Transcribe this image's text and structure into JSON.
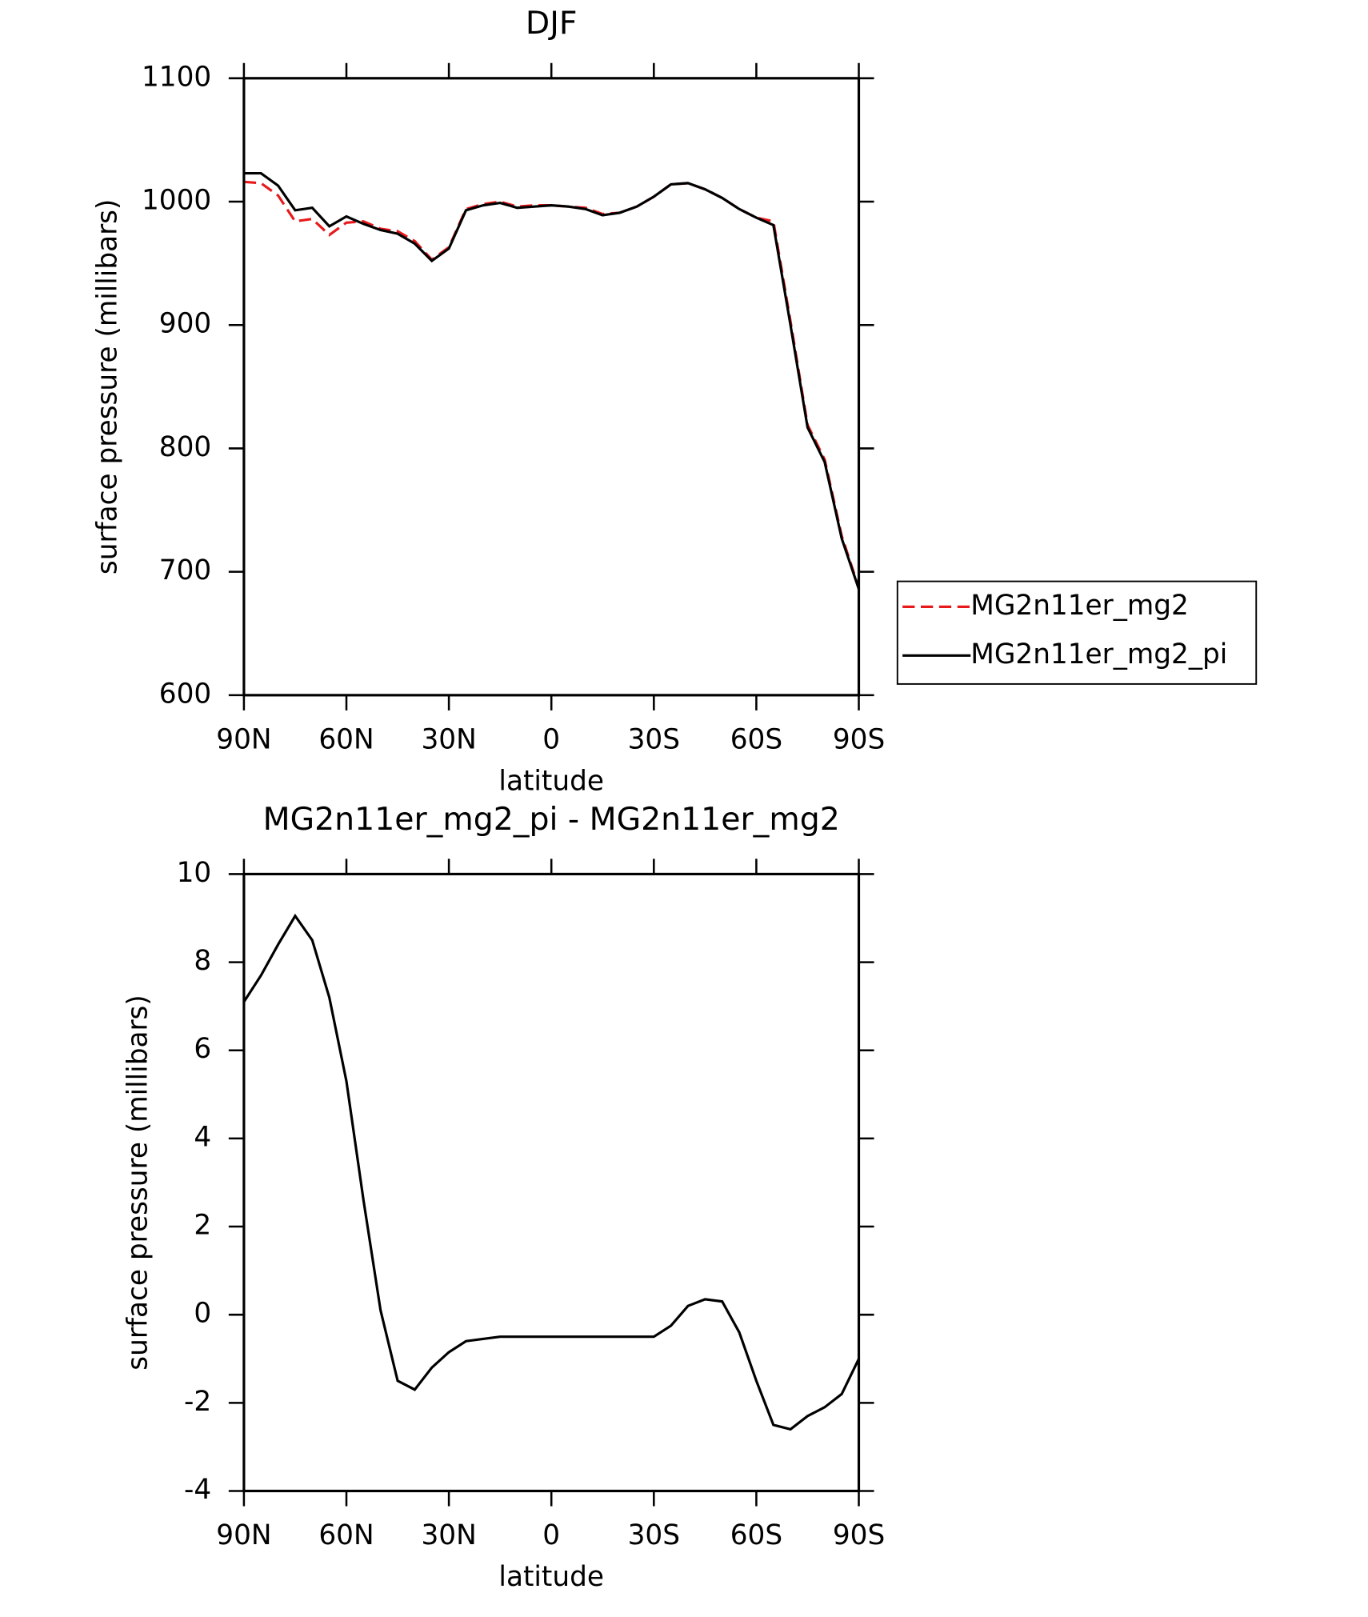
{
  "chart_data": [
    {
      "type": "line",
      "title": "DJF",
      "x_label": "latitude",
      "y_label": "surface pressure (millibars)",
      "x": [
        90,
        85,
        80,
        75,
        70,
        65,
        60,
        55,
        50,
        45,
        40,
        35,
        30,
        25,
        20,
        15,
        10,
        5,
        0,
        -5,
        -10,
        -15,
        -20,
        -25,
        -30,
        -35,
        -40,
        -45,
        -50,
        -55,
        -60,
        -65,
        -70,
        -75,
        -80,
        -85,
        -90
      ],
      "xlim": [
        90,
        -90
      ],
      "xticks": [
        {
          "value": 90,
          "label": "90N"
        },
        {
          "value": 60,
          "label": "60N"
        },
        {
          "value": 30,
          "label": "30N"
        },
        0,
        {
          "value": -30,
          "label": "30S"
        },
        {
          "value": -60,
          "label": "60S"
        },
        {
          "value": -90,
          "label": "90S"
        }
      ],
      "ylim": [
        600,
        1100
      ],
      "yticks": [
        600,
        700,
        800,
        900,
        1000,
        1100
      ],
      "legend": "right",
      "series": [
        {
          "name": "MG2n11er_mg2",
          "color": "#e8191b",
          "dash": true,
          "values": [
            1016,
            1015,
            1005,
            984,
            986,
            973,
            983,
            984,
            978,
            976,
            968,
            953,
            963,
            994,
            998,
            1000,
            996,
            997,
            997,
            996,
            995,
            990,
            991,
            996,
            1004,
            1014,
            1015,
            1010,
            1003,
            994,
            987,
            984,
            903,
            819,
            791,
            729,
            687
          ]
        },
        {
          "name": "MG2n11er_mg2_pi",
          "color": "#000000",
          "dash": false,
          "values": [
            1023,
            1023,
            1013,
            993,
            995,
            980,
            988,
            982,
            977,
            974,
            966,
            952,
            962,
            993,
            997,
            999,
            995,
            996,
            997,
            996,
            994,
            989,
            991,
            996,
            1004,
            1014,
            1015,
            1010,
            1003,
            994,
            987,
            981,
            900,
            817,
            789,
            727,
            686
          ]
        }
      ]
    },
    {
      "type": "line",
      "title": "MG2n11er_mg2_pi - MG2n11er_mg2",
      "x_label": "latitude",
      "y_label": "surface pressure (millibars)",
      "x": [
        90,
        85,
        80,
        75,
        70,
        65,
        60,
        55,
        50,
        45,
        40,
        35,
        30,
        25,
        20,
        15,
        10,
        5,
        0,
        -5,
        -10,
        -15,
        -20,
        -25,
        -30,
        -35,
        -40,
        -45,
        -50,
        -55,
        -60,
        -65,
        -70,
        -75,
        -80,
        -85,
        -90
      ],
      "xlim": [
        90,
        -90
      ],
      "xticks": [
        {
          "value": 90,
          "label": "90N"
        },
        {
          "value": 60,
          "label": "60N"
        },
        {
          "value": 30,
          "label": "30N"
        },
        0,
        {
          "value": -30,
          "label": "30S"
        },
        {
          "value": -60,
          "label": "60S"
        },
        {
          "value": -90,
          "label": "90S"
        }
      ],
      "ylim": [
        -4,
        10
      ],
      "yticks": [
        -4,
        -2,
        0,
        2,
        4,
        6,
        8,
        10
      ],
      "series": [
        {
          "color": "#000000",
          "dash": false,
          "values": [
            7.1,
            7.7,
            8.4,
            9.05,
            8.5,
            7.2,
            5.3,
            2.6,
            0.1,
            -1.5,
            -1.7,
            -1.2,
            -0.85,
            -0.6,
            -0.55,
            -0.5,
            -0.5,
            -0.5,
            -0.5,
            -0.5,
            -0.5,
            -0.5,
            -0.5,
            -0.5,
            -0.5,
            -0.25,
            0.2,
            0.35,
            0.3,
            -0.4,
            -1.5,
            -2.5,
            -2.6,
            -2.3,
            -2.1,
            -1.8,
            -1.0
          ]
        }
      ]
    }
  ]
}
